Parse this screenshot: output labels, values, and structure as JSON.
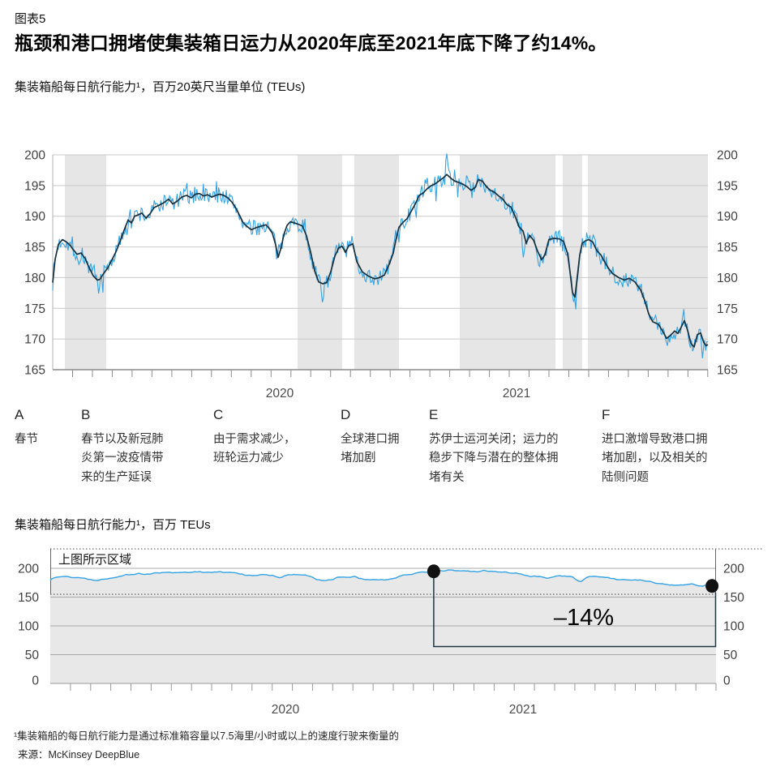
{
  "page": {
    "kicker": "图表5",
    "title": "瓶颈和港口拥堵使集装箱日运力从2020年底至2021年底下降了约14%。",
    "subtitle": "集装箱船每日航行能力¹，百万20英尺当量单位 (TEUs)",
    "subtitle2": "集装箱船每日航行能力¹，百万 TEUs",
    "footnote": "¹集装箱船的每日航行能力是通过标准箱容量以7.5海里/小时或以上的速度行驶来衡量的",
    "source": "来源：McKinsey DeepBlue"
  },
  "annotations": [
    {
      "letter": "A",
      "text": "春节"
    },
    {
      "letter": "B",
      "text": "春节以及新冠肺\n炎第一波疫情带\n来的生产延误"
    },
    {
      "letter": "C",
      "text": "由于需求减少，\n班轮运力减少"
    },
    {
      "letter": "D",
      "text": "全球港口拥\n堵加剧"
    },
    {
      "letter": "E",
      "text": "苏伊士运河关闭；运力的\n稳步下降与潜在的整体拥\n堵有关"
    },
    {
      "letter": "F",
      "text": "进口激增导致港口拥\n堵加剧，以及相关的\n陆侧问题"
    }
  ],
  "chart_data": [
    {
      "type": "line",
      "title": "集装箱船每日航行能力，百万20英尺当量单位 (TEUs)",
      "y_ticks": [
        200,
        195,
        190,
        185,
        180,
        175,
        170,
        165
      ],
      "y_range": [
        165,
        200
      ],
      "x_labels": [
        "2020",
        "2021"
      ],
      "grid": true,
      "band_color": "#E6E6E6",
      "bands": [
        {
          "label": "A",
          "t0": 0.0186,
          "t1": 0.0817
        },
        {
          "label": "B",
          "t0": 0.3738,
          "t1": 0.4418
        },
        {
          "label": "C",
          "t0": 0.4604,
          "t1": 0.5285
        },
        {
          "label": "D",
          "t0": 0.6213,
          "t1": 0.7673
        },
        {
          "label": "E",
          "t0": 0.7785,
          "t1": 0.8081
        },
        {
          "label": "F",
          "t0": 0.8168,
          "t1": 1.0
        }
      ],
      "series": [
        {
          "name": "daily-sailing-capacity",
          "color": "#33A3E6",
          "style": "volatile",
          "noise_amplitude": 1.35,
          "spikes": [
            [
              0.0396,
              -2.3
            ],
            [
              0.0693,
              -2.4
            ],
            [
              0.1163,
              1.8
            ],
            [
              0.3441,
              -1.5
            ],
            [
              0.4121,
              -2.6
            ],
            [
              0.521,
              1.6
            ],
            [
              0.6015,
              2.9
            ],
            [
              0.6337,
              2.0
            ],
            [
              0.719,
              -5.2
            ],
            [
              0.7413,
              -3.2
            ],
            [
              0.7983,
              -3.4
            ],
            [
              0.8366,
              -2.2
            ],
            [
              0.9629,
              1.7
            ],
            [
              0.9913,
              -2.6
            ]
          ]
        },
        {
          "name": "smoothed-trend",
          "color": "#16303E",
          "anchors": [
            [
              0,
              179.2
            ],
            [
              0.0037,
              183
            ],
            [
              0.0087,
              185.4
            ],
            [
              0.0149,
              186.2
            ],
            [
              0.021,
              185.8
            ],
            [
              0.0272,
              185.2
            ],
            [
              0.0309,
              184.6
            ],
            [
              0.0371,
              183.8
            ],
            [
              0.0433,
              184
            ],
            [
              0.0495,
              183.1
            ],
            [
              0.0557,
              181.6
            ],
            [
              0.0619,
              180.3
            ],
            [
              0.0681,
              179.6
            ],
            [
              0.0718,
              179.7
            ],
            [
              0.078,
              180.7
            ],
            [
              0.0842,
              181.6
            ],
            [
              0.0903,
              182.9
            ],
            [
              0.0965,
              184.2
            ],
            [
              0.1027,
              185.9
            ],
            [
              0.1089,
              187.7
            ],
            [
              0.1151,
              189.4
            ],
            [
              0.12,
              188.9
            ],
            [
              0.125,
              190
            ],
            [
              0.13,
              190.2
            ],
            [
              0.1361,
              190.5
            ],
            [
              0.1423,
              189.7
            ],
            [
              0.1485,
              190.4
            ],
            [
              0.1547,
              191.4
            ],
            [
              0.1621,
              191.8
            ],
            [
              0.1695,
              192.2
            ],
            [
              0.177,
              192.8
            ],
            [
              0.1832,
              192
            ],
            [
              0.1894,
              192.4
            ],
            [
              0.1968,
              193.1
            ],
            [
              0.2042,
              193.4
            ],
            [
              0.2116,
              193
            ],
            [
              0.2178,
              193.6
            ],
            [
              0.224,
              193.7
            ],
            [
              0.2302,
              193.3
            ],
            [
              0.2364,
              193.5
            ],
            [
              0.2426,
              193.1
            ],
            [
              0.2488,
              193.4
            ],
            [
              0.255,
              193.6
            ],
            [
              0.2611,
              193.4
            ],
            [
              0.2673,
              193
            ],
            [
              0.2735,
              192.3
            ],
            [
              0.2797,
              191.3
            ],
            [
              0.2859,
              190
            ],
            [
              0.2908,
              188.9
            ],
            [
              0.297,
              188.3
            ],
            [
              0.3032,
              187.8
            ],
            [
              0.3094,
              188.1
            ],
            [
              0.3156,
              188.3
            ],
            [
              0.3218,
              188.5
            ],
            [
              0.3255,
              188.6
            ],
            [
              0.3304,
              188
            ],
            [
              0.3354,
              187.2
            ],
            [
              0.3403,
              185.3
            ],
            [
              0.344,
              183.3
            ],
            [
              0.349,
              185
            ],
            [
              0.3527,
              187
            ],
            [
              0.3577,
              188.5
            ],
            [
              0.3626,
              189.1
            ],
            [
              0.3688,
              188.9
            ],
            [
              0.375,
              188.7
            ],
            [
              0.3812,
              188.4
            ],
            [
              0.3874,
              186.8
            ],
            [
              0.3936,
              184.2
            ],
            [
              0.3998,
              181.1
            ],
            [
              0.4059,
              179.3
            ],
            [
              0.4121,
              179
            ],
            [
              0.4183,
              179.2
            ],
            [
              0.4245,
              181
            ],
            [
              0.4307,
              183.5
            ],
            [
              0.4369,
              184.9
            ],
            [
              0.4418,
              185.1
            ],
            [
              0.4468,
              184.1
            ],
            [
              0.4517,
              185.2
            ],
            [
              0.4579,
              185.5
            ],
            [
              0.4641,
              182.6
            ],
            [
              0.4728,
              180.9
            ],
            [
              0.4827,
              180.2
            ],
            [
              0.4913,
              179.8
            ],
            [
              0.4988,
              180
            ],
            [
              0.5062,
              180.4
            ],
            [
              0.5136,
              182.2
            ],
            [
              0.5198,
              184
            ],
            [
              0.5235,
              186
            ],
            [
              0.5285,
              188.2
            ],
            [
              0.5347,
              189
            ],
            [
              0.5409,
              189.6
            ],
            [
              0.5471,
              190.8
            ],
            [
              0.5533,
              192
            ],
            [
              0.5594,
              193.4
            ],
            [
              0.5656,
              193.8
            ],
            [
              0.5718,
              194.5
            ],
            [
              0.578,
              195
            ],
            [
              0.5842,
              195.3
            ],
            [
              0.5904,
              195.8
            ],
            [
              0.5966,
              196.3
            ],
            [
              0.6015,
              196.8
            ],
            [
              0.6077,
              196.2
            ],
            [
              0.6139,
              195.7
            ],
            [
              0.6201,
              195.5
            ],
            [
              0.6263,
              195.2
            ],
            [
              0.6325,
              194.8
            ],
            [
              0.6386,
              194.2
            ],
            [
              0.6448,
              194.7
            ],
            [
              0.6498,
              196
            ],
            [
              0.656,
              195.7
            ],
            [
              0.6621,
              194.8
            ],
            [
              0.6683,
              194.2
            ],
            [
              0.6745,
              193.9
            ],
            [
              0.6807,
              193.3
            ],
            [
              0.6869,
              192.8
            ],
            [
              0.6931,
              191.9
            ],
            [
              0.6993,
              191.5
            ],
            [
              0.7054,
              190.1
            ],
            [
              0.7116,
              188.3
            ],
            [
              0.7178,
              187.6
            ],
            [
              0.7228,
              185.6
            ],
            [
              0.7277,
              186.9
            ],
            [
              0.7339,
              186.1
            ],
            [
              0.7401,
              184.3
            ],
            [
              0.7463,
              182.9
            ],
            [
              0.7512,
              183.7
            ],
            [
              0.7574,
              186.2
            ],
            [
              0.7649,
              186.4
            ],
            [
              0.7735,
              186.3
            ],
            [
              0.7797,
              185.9
            ],
            [
              0.7859,
              183.9
            ],
            [
              0.7896,
              180.9
            ],
            [
              0.7933,
              177.6
            ],
            [
              0.797,
              176.8
            ],
            [
              0.8007,
              180.2
            ],
            [
              0.8045,
              183.7
            ],
            [
              0.8082,
              185.6
            ],
            [
              0.8131,
              186
            ],
            [
              0.8181,
              186.2
            ],
            [
              0.8243,
              185.8
            ],
            [
              0.8304,
              184.4
            ],
            [
              0.8366,
              183.7
            ],
            [
              0.8428,
              182.5
            ],
            [
              0.849,
              181.4
            ],
            [
              0.8552,
              180.6
            ],
            [
              0.8639,
              180
            ],
            [
              0.8725,
              179.6
            ],
            [
              0.88,
              179.9
            ],
            [
              0.8886,
              179.3
            ],
            [
              0.8973,
              178
            ],
            [
              0.9035,
              176.3
            ],
            [
              0.9097,
              174.1
            ],
            [
              0.9158,
              172.8
            ],
            [
              0.9245,
              172.4
            ],
            [
              0.9319,
              171.1
            ],
            [
              0.9369,
              170.1
            ],
            [
              0.9431,
              170.6
            ],
            [
              0.9493,
              171.3
            ],
            [
              0.9542,
              170.9
            ],
            [
              0.9592,
              171.9
            ],
            [
              0.9641,
              173
            ],
            [
              0.9691,
              171.4
            ],
            [
              0.974,
              169.3
            ],
            [
              0.979,
              168.7
            ],
            [
              0.9839,
              170.7
            ],
            [
              0.9889,
              171
            ],
            [
              0.9938,
              169.4
            ],
            [
              0.9975,
              168.9
            ],
            [
              1,
              169.1
            ]
          ]
        }
      ]
    },
    {
      "type": "area",
      "title": "集装箱船每日航行能力，百万 TEUs",
      "y_ticks": [
        200,
        150,
        100,
        50,
        0
      ],
      "y_range": [
        0,
        200
      ],
      "x_labels": [
        "2020",
        "2021"
      ],
      "region_label": "上图所示区域",
      "annotation_label": "–14%",
      "line_color": "#33A3E6",
      "fill_color": "#E8E8E8",
      "bracket_color": "#1F3642",
      "dot_color": "#111111",
      "dots_t": [
        0.576,
        0.994
      ],
      "noise_amplitude": 0.9
    }
  ]
}
